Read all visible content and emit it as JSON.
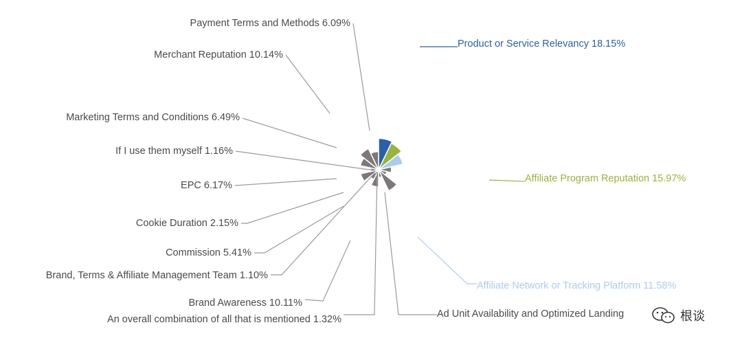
{
  "chart_data": {
    "type": "polar-area",
    "title": "",
    "series": [
      {
        "label": "Product or Service Relevancy 18.15%",
        "value": 18.15,
        "color": "#2960AD"
      },
      {
        "label": "Affiliate Program Reputation 15.97%",
        "value": 15.97,
        "color": "#98B43A"
      },
      {
        "label": "Affiliate Network or Tracking Platform 11.58%",
        "value": 11.58,
        "color": "#A8CDF5"
      },
      {
        "label": "Ad Unit Availability and Optimized Landing",
        "value": 3.1,
        "color": "#7F7878"
      },
      {
        "label": "An overall combination of all that is mentioned 1.32%",
        "value": 1.32,
        "color": "#7F7878"
      },
      {
        "label": "Brand Awareness 10.11%",
        "value": 10.11,
        "color": "#7F7878"
      },
      {
        "label": "Brand, Terms & Affiliate Management Team 1.10%",
        "value": 1.1,
        "color": "#7F7878"
      },
      {
        "label": "Commission 5.41%",
        "value": 5.41,
        "color": "#7F7878"
      },
      {
        "label": "Cookie Duration 2.15%",
        "value": 2.15,
        "color": "#7F7878"
      },
      {
        "label": "EPC 6.17%",
        "value": 6.17,
        "color": "#7F7878"
      },
      {
        "label": "If I use them myself 1.16%",
        "value": 1.16,
        "color": "#7F7878"
      },
      {
        "label": "Marketing Terms and Conditions 6.49%",
        "value": 6.49,
        "color": "#7F7878"
      },
      {
        "label": "Merchant Reputation 10.14%",
        "value": 10.14,
        "color": "#7F7878"
      },
      {
        "label": "Payment Terms and Methods 6.09%",
        "value": 6.09,
        "color": "#7F7878"
      }
    ],
    "label_colors": {
      "Product or Service Relevancy 18.15%": "#2960AD",
      "Affiliate Program Reputation 15.97%": "#98B43A",
      "Affiliate Network or Tracking Platform 11.58%": "#A8CDF5"
    },
    "default_label_color": "#4a4a4a"
  },
  "watermark": {
    "icon": "wechat-icon",
    "text": "根谈"
  }
}
